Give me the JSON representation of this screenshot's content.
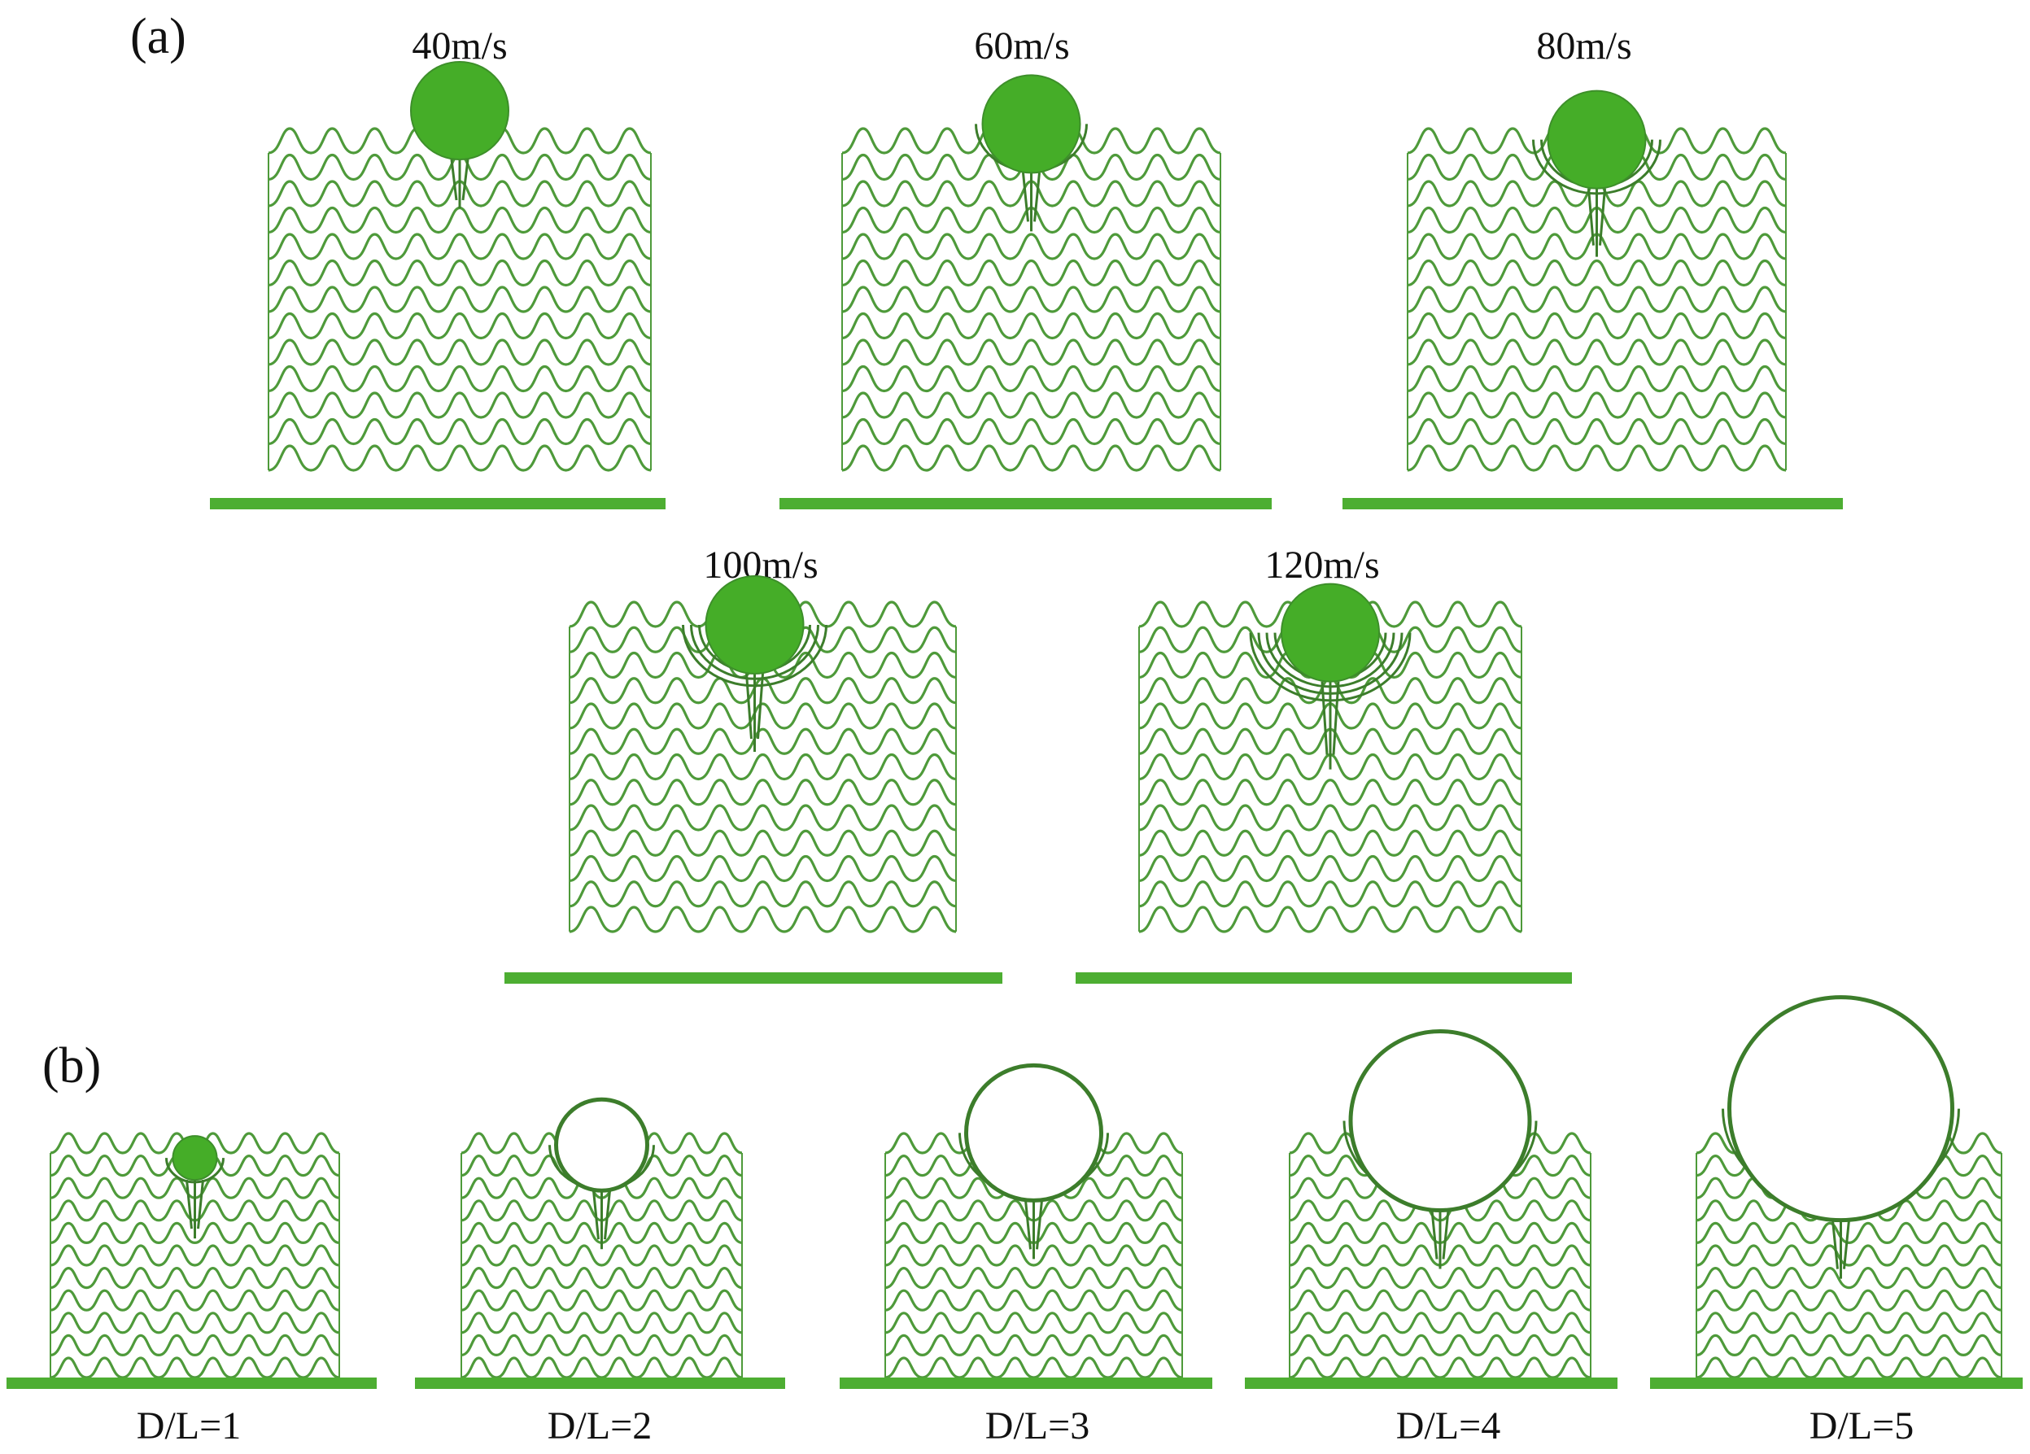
{
  "figure": {
    "panel_a": {
      "label": "(a)",
      "cases": [
        {
          "caption": "40m/s",
          "indent": 0.0,
          "damage": 0
        },
        {
          "caption": "60m/s",
          "indent": 0.12,
          "damage": 1
        },
        {
          "caption": "80m/s",
          "indent": 0.28,
          "damage": 2
        },
        {
          "caption": "100m/s",
          "indent": 0.4,
          "damage": 3
        },
        {
          "caption": "120m/s",
          "indent": 0.48,
          "damage": 4
        }
      ]
    },
    "panel_b": {
      "label": "(b)",
      "cases": [
        {
          "caption": "D/L=1",
          "ratio": 1,
          "filled": true
        },
        {
          "caption": "D/L=2",
          "ratio": 2,
          "filled": false
        },
        {
          "caption": "D/L=3",
          "ratio": 3,
          "filled": false
        },
        {
          "caption": "D/L=4",
          "ratio": 4,
          "filled": false
        },
        {
          "caption": "D/L=5",
          "ratio": 5,
          "filled": false
        }
      ]
    },
    "colors": {
      "lattice": "#4e9a3a",
      "lattice_dark": "#3c7d2b",
      "base": "#4dae32",
      "sphere_fill": "#45ad28",
      "sphere_edge": "#3d8f2a",
      "hollow_fill": "#ffffff"
    }
  }
}
